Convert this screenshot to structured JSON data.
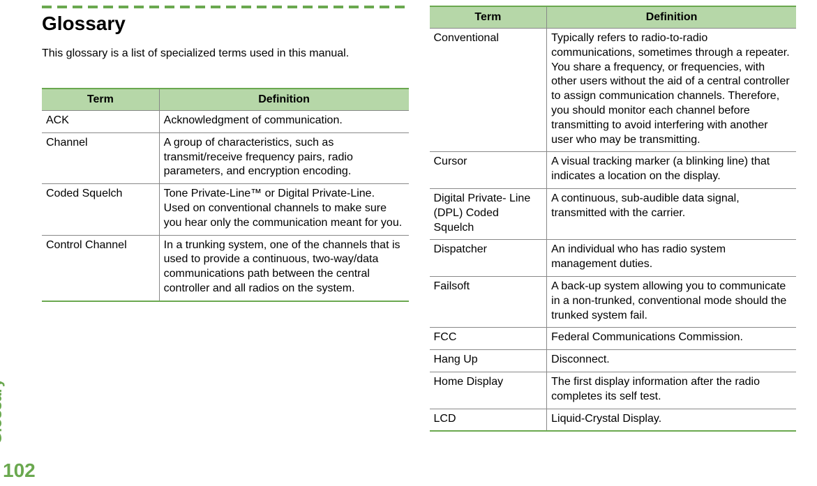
{
  "sidebar": {
    "label": "Glossary",
    "page_number": "102"
  },
  "heading": "Glossary",
  "intro": "This glossary is a list of specialized terms used in this manual.",
  "table_headers": {
    "term": "Term",
    "definition": "Definition"
  },
  "colors": {
    "accent": "#6aa84f",
    "header_bg": "#b6d7a8",
    "grid": "#888888",
    "text": "#000000",
    "background": "#ffffff"
  },
  "left_rows": [
    {
      "term": "ACK",
      "definition": "Acknowledgment of communication."
    },
    {
      "term": "Channel",
      "definition": "A group of characteristics, such as transmit/receive frequency pairs, radio parameters, and encryption encoding."
    },
    {
      "term": "Coded Squelch",
      "definition": "Tone Private-Line™ or Digital Private-Line. Used on conventional channels to make sure you hear only the communication meant for you."
    },
    {
      "term": "Control Channel",
      "definition": "In a trunking system, one of the channels that is used to provide a continuous, two-way/data communications path between the central controller and all radios on the system."
    }
  ],
  "right_rows": [
    {
      "term": "Conventional",
      "definition": "Typically refers to radio-to-radio communications, sometimes through a repeater. You share a frequency, or frequencies, with other users without the aid of a central controller to assign communication channels. Therefore, you should monitor each channel before transmitting to avoid interfering with another user who may be transmitting."
    },
    {
      "term": "Cursor",
      "definition": "A visual tracking marker (a blinking line) that indicates a location on the display."
    },
    {
      "term": "Digital Private- Line (DPL) Coded Squelch",
      "definition": "A continuous, sub-audible data signal, transmitted with the carrier."
    },
    {
      "term": "Dispatcher",
      "definition": "An individual who has radio system management duties."
    },
    {
      "term": "Failsoft",
      "definition": "A back-up system allowing you to communicate in a non-trunked, conventional mode should the trunked system fail."
    },
    {
      "term": "FCC",
      "definition": "Federal Communications Commission."
    },
    {
      "term": "Hang Up",
      "definition": "Disconnect."
    },
    {
      "term": "Home Display",
      "definition": "The first display information after the radio completes its self test."
    },
    {
      "term": "LCD",
      "definition": "Liquid-Crystal Display."
    }
  ]
}
